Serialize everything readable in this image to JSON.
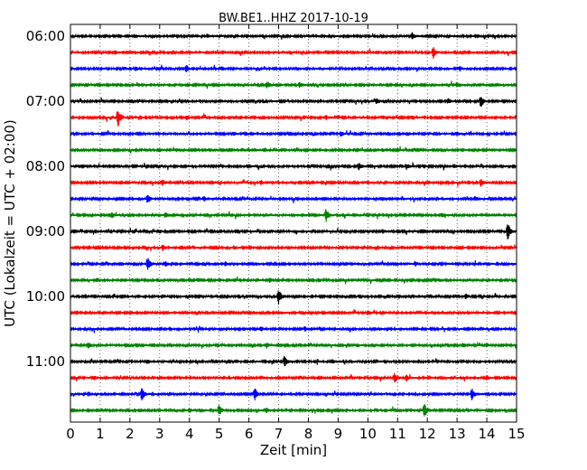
{
  "chart_data": {
    "type": "line",
    "title": "BW.BE1..HHZ 2017-10-19",
    "xlabel": "Zeit  [min]",
    "ylabel": "UTC (Lokalzeit = UTC + 02:00)",
    "xlim": [
      0,
      15
    ],
    "x_ticks": [
      "0",
      "1",
      "2",
      "3",
      "4",
      "5",
      "6",
      "7",
      "8",
      "9",
      "10",
      "11",
      "12",
      "13",
      "14",
      "15"
    ],
    "y_ticks": [
      "06:00",
      "07:00",
      "08:00",
      "09:00",
      "10:00",
      "11:00"
    ],
    "grid": "vertical dotted",
    "trace_colors": [
      "#000000",
      "#ff0000",
      "#0000ff",
      "#008000"
    ],
    "traces": [
      {
        "start": "06:00",
        "events": [
          {
            "t": 11.5,
            "a": 0.45
          },
          {
            "t": 4.6,
            "a": 0.2
          }
        ]
      },
      {
        "start": "06:15",
        "events": [
          {
            "t": 12.2,
            "a": 0.85
          },
          {
            "t": 1.5,
            "a": 0.3
          },
          {
            "t": 4.0,
            "a": 0.25
          }
        ]
      },
      {
        "start": "06:30",
        "events": [
          {
            "t": 3.9,
            "a": 0.5
          },
          {
            "t": 2.2,
            "a": 0.3
          },
          {
            "t": 5.1,
            "a": 0.3
          },
          {
            "t": 13.1,
            "a": 0.3
          }
        ]
      },
      {
        "start": "06:45",
        "events": [
          {
            "t": 6.6,
            "a": 0.6
          },
          {
            "t": 7.7,
            "a": 0.4
          },
          {
            "t": 13.0,
            "a": 0.4
          }
        ]
      },
      {
        "start": "07:00",
        "events": [
          {
            "t": 13.8,
            "a": 0.9
          },
          {
            "t": 10.3,
            "a": 0.4
          },
          {
            "t": 12.7,
            "a": 0.4
          }
        ]
      },
      {
        "start": "07:15",
        "events": [
          {
            "t": 1.6,
            "a": 1.6
          },
          {
            "t": 3.9,
            "a": 0.3
          },
          {
            "t": 8.6,
            "a": 0.3
          },
          {
            "t": 11.5,
            "a": 0.3
          }
        ]
      },
      {
        "start": "07:30",
        "events": [
          {
            "t": 9.1,
            "a": 0.4
          },
          {
            "t": 5.5,
            "a": 0.3
          },
          {
            "t": 13.0,
            "a": 0.25
          }
        ]
      },
      {
        "start": "07:45",
        "events": [
          {
            "t": 10.5,
            "a": 0.2
          },
          {
            "t": 3.0,
            "a": 0.2
          }
        ]
      },
      {
        "start": "08:00",
        "events": [
          {
            "t": 9.7,
            "a": 0.5
          },
          {
            "t": 11.3,
            "a": 0.45
          },
          {
            "t": 12.9,
            "a": 0.35
          }
        ]
      },
      {
        "start": "08:15",
        "events": [
          {
            "t": 13.8,
            "a": 0.6
          },
          {
            "t": 3.1,
            "a": 0.45
          },
          {
            "t": 6.4,
            "a": 0.3
          },
          {
            "t": 10.0,
            "a": 0.3
          }
        ]
      },
      {
        "start": "08:30",
        "events": [
          {
            "t": 2.6,
            "a": 0.65
          },
          {
            "t": 4.5,
            "a": 0.3
          },
          {
            "t": 13.6,
            "a": 0.35
          }
        ]
      },
      {
        "start": "08:45",
        "events": [
          {
            "t": 8.6,
            "a": 1.0
          },
          {
            "t": 1.4,
            "a": 0.4
          },
          {
            "t": 3.2,
            "a": 0.4
          },
          {
            "t": 12.5,
            "a": 0.35
          }
        ]
      },
      {
        "start": "09:00",
        "events": [
          {
            "t": 14.7,
            "a": 1.4
          },
          {
            "t": 10.5,
            "a": 0.3
          },
          {
            "t": 3.0,
            "a": 0.25
          }
        ]
      },
      {
        "start": "09:15",
        "events": [
          {
            "t": 3.1,
            "a": 0.45
          },
          {
            "t": 5.5,
            "a": 0.25
          },
          {
            "t": 11.2,
            "a": 0.2
          }
        ]
      },
      {
        "start": "09:30",
        "events": [
          {
            "t": 2.6,
            "a": 1.2
          },
          {
            "t": 3.2,
            "a": 0.35
          },
          {
            "t": 5.2,
            "a": 0.35
          },
          {
            "t": 11.6,
            "a": 0.35
          }
        ]
      },
      {
        "start": "09:45",
        "events": [
          {
            "t": 0.9,
            "a": 0.3
          },
          {
            "t": 6.7,
            "a": 0.35
          },
          {
            "t": 12.4,
            "a": 0.25
          }
        ]
      },
      {
        "start": "10:00",
        "events": [
          {
            "t": 7.0,
            "a": 1.2
          },
          {
            "t": 13.3,
            "a": 0.4
          },
          {
            "t": 4.3,
            "a": 0.3
          }
        ]
      },
      {
        "start": "10:15",
        "events": [
          {
            "t": 10.0,
            "a": 0.35
          },
          {
            "t": 7.1,
            "a": 0.2
          },
          {
            "t": 3.5,
            "a": 0.2
          }
        ]
      },
      {
        "start": "10:30",
        "events": [
          {
            "t": 7.9,
            "a": 0.35
          },
          {
            "t": 6.4,
            "a": 0.3
          },
          {
            "t": 10.4,
            "a": 0.2
          }
        ]
      },
      {
        "start": "10:45",
        "events": [
          {
            "t": 0.6,
            "a": 0.4
          },
          {
            "t": 6.6,
            "a": 0.4
          },
          {
            "t": 13.2,
            "a": 0.35
          },
          {
            "t": 14.0,
            "a": 0.3
          }
        ]
      },
      {
        "start": "11:00",
        "events": [
          {
            "t": 7.2,
            "a": 0.9
          },
          {
            "t": 2.6,
            "a": 0.3
          },
          {
            "t": 8.8,
            "a": 0.25
          }
        ]
      },
      {
        "start": "11:15",
        "events": [
          {
            "t": 10.9,
            "a": 0.75
          },
          {
            "t": 11.3,
            "a": 0.45
          },
          {
            "t": 0.8,
            "a": 0.3
          },
          {
            "t": 14.0,
            "a": 0.3
          }
        ]
      },
      {
        "start": "11:30",
        "events": [
          {
            "t": 2.4,
            "a": 1.1
          },
          {
            "t": 6.2,
            "a": 1.0
          },
          {
            "t": 13.5,
            "a": 0.9
          },
          {
            "t": 0.6,
            "a": 0.35
          }
        ]
      },
      {
        "start": "11:45",
        "events": [
          {
            "t": 11.9,
            "a": 1.2
          },
          {
            "t": 5.0,
            "a": 0.85
          },
          {
            "t": 4.0,
            "a": 0.4
          },
          {
            "t": 6.6,
            "a": 0.3
          }
        ]
      }
    ]
  }
}
